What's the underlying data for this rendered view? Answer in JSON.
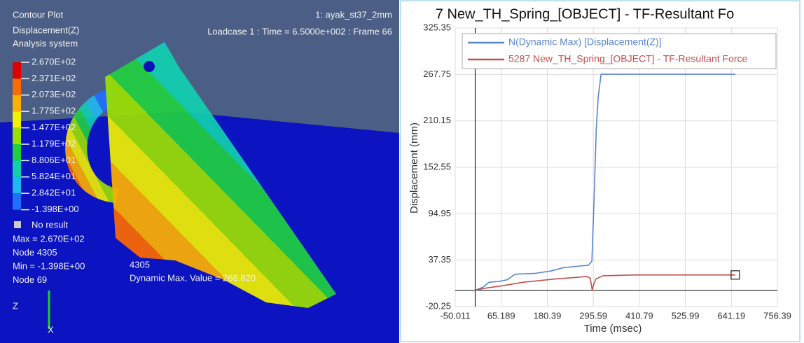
{
  "left_panel": {
    "title_lines": [
      "Contour Plot",
      "Displacement(Z)",
      "Analysis system"
    ],
    "model_name": "1: ayak_st37_2mm",
    "loadcase": "Loadcase 1 : Time = 6.5000e+002 : Frame 66",
    "legend_labels": [
      "2.670E+02",
      "2.371E+02",
      "2.073E+02",
      "1.775E+02",
      "1.477E+02",
      "1.179E+02",
      "8.806E+01",
      "5.824E+01",
      "2.842E+01",
      "-1.398E+00"
    ],
    "no_result": "No result",
    "stats": [
      "Max = 2.670E+02",
      "Node 4305",
      "Min = -1.398E+00",
      "Node 69"
    ],
    "node_label": "4305",
    "dynamic_max": "Dynamic Max. Value =  266.820",
    "axis_z": "Z",
    "axis_x": "X"
  },
  "chart_data": {
    "type": "line",
    "title": "7 New_TH_Spring_[OBJECT] - TF-Resultant Fo",
    "x_label": "Time (msec)",
    "y_label": "Displacement (mm)",
    "xlim": [
      -50.011,
      756.39
    ],
    "xticks": [
      -50.011,
      65.189,
      180.39,
      295.59,
      410.79,
      525.99,
      641.19,
      756.39
    ],
    "ylim": [
      -20.25,
      325.35
    ],
    "yticks": [
      -20.25,
      37.35,
      94.95,
      152.55,
      210.15,
      267.75,
      325.35
    ],
    "grid": true,
    "legend": "top-left",
    "series": [
      {
        "name": "N(Dynamic Max) [Displacement(Z)]",
        "color": "#5a86cc",
        "x": [
          0,
          20,
          35,
          60,
          80,
          100,
          150,
          190,
          220,
          260,
          283,
          292,
          298,
          303,
          308,
          315,
          651
        ],
        "values": [
          0,
          4,
          10,
          11,
          13,
          20,
          21,
          24,
          28,
          30,
          31,
          36,
          120,
          200,
          240,
          268,
          268
        ]
      },
      {
        "name": "5287 New_TH_Spring_[OBJECT] - TF-Resultant Force",
        "color": "#c0504d",
        "x": [
          0,
          30,
          60,
          120,
          200,
          280,
          288,
          293,
          297,
          302,
          320,
          400,
          651
        ],
        "values": [
          0,
          3,
          5,
          10,
          14,
          17,
          15,
          0,
          8,
          14,
          18,
          19,
          19
        ]
      }
    ]
  }
}
